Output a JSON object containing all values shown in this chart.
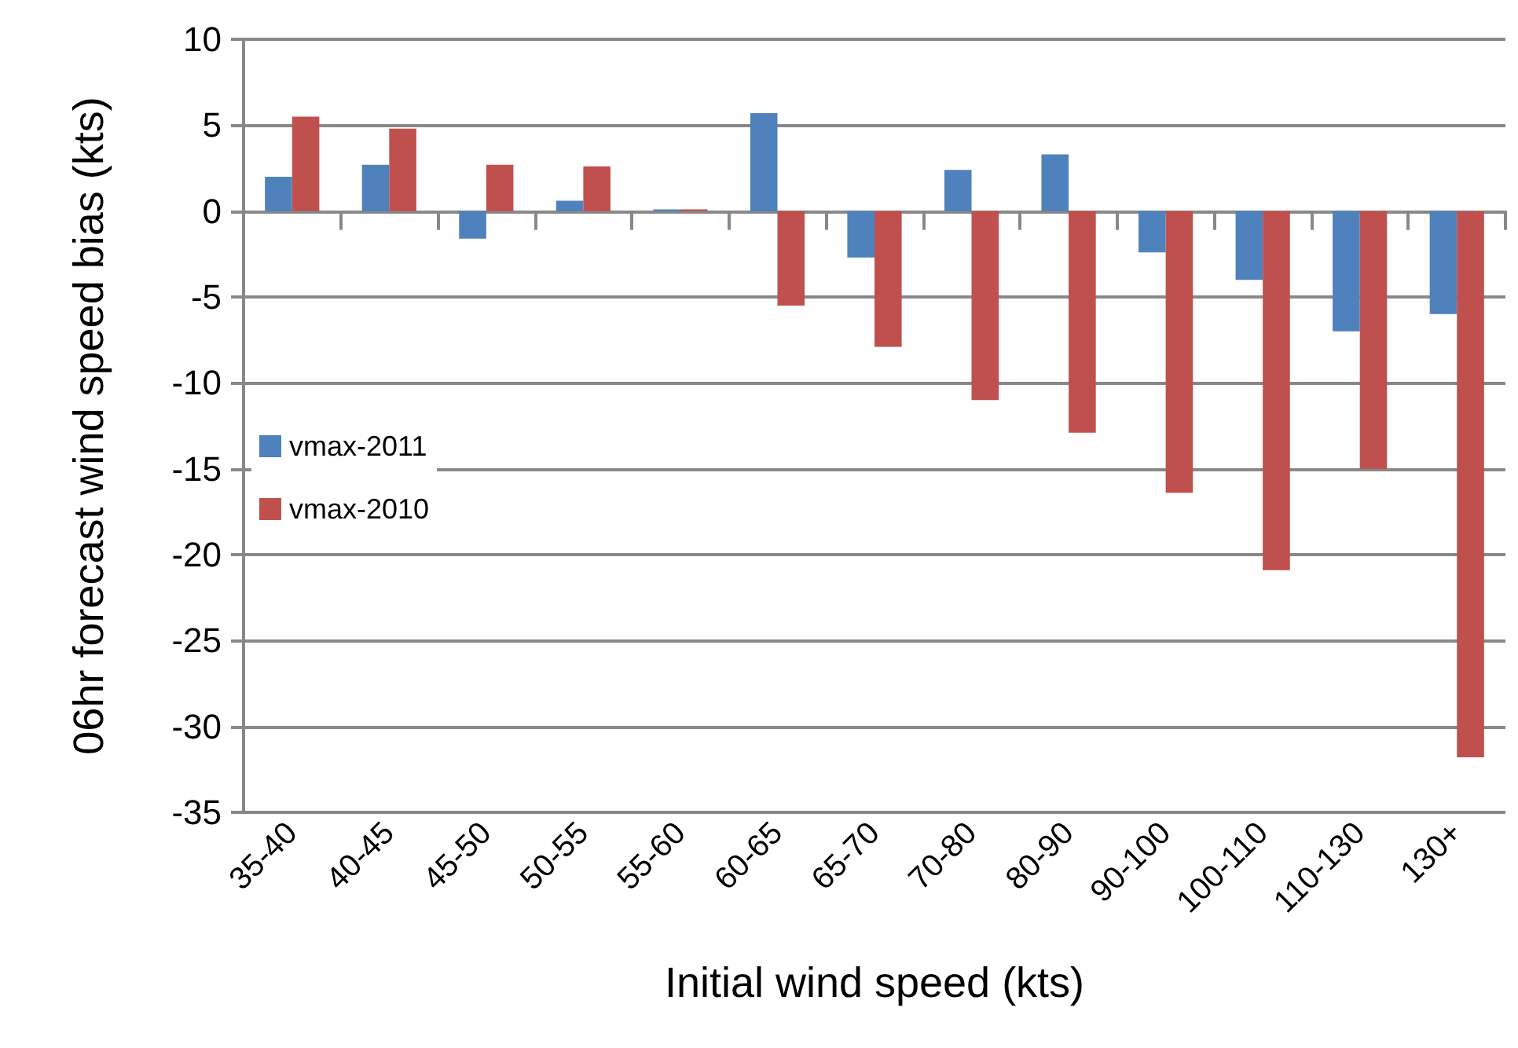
{
  "chart_data": {
    "type": "bar",
    "xlabel": "Initial wind speed (kts)",
    "ylabel": "06hr forecast wind speed bias (kts)",
    "categories": [
      "35-40",
      "40-45",
      "45-50",
      "50-55",
      "55-60",
      "60-65",
      "65-70",
      "70-80",
      "80-90",
      "90-100",
      "100-110",
      "110-130",
      "130+"
    ],
    "series": [
      {
        "name": "vmax-2011",
        "color": "#4f81bd",
        "values": [
          2.0,
          2.7,
          -1.6,
          0.6,
          0.1,
          5.7,
          -2.7,
          2.4,
          3.3,
          -2.4,
          -4.0,
          -7.0,
          -6.0
        ]
      },
      {
        "name": "vmax-2010",
        "color": "#c0504d",
        "values": [
          5.5,
          4.8,
          2.7,
          2.6,
          0.1,
          -5.5,
          -7.9,
          -11.0,
          -12.9,
          -16.4,
          -20.9,
          -15.0,
          -31.8
        ]
      }
    ],
    "ylim": [
      -35,
      10
    ],
    "yticks": [
      -35,
      -30,
      -25,
      -20,
      -15,
      -10,
      -5,
      0,
      5,
      10
    ],
    "grid": "y",
    "legend": "left"
  }
}
